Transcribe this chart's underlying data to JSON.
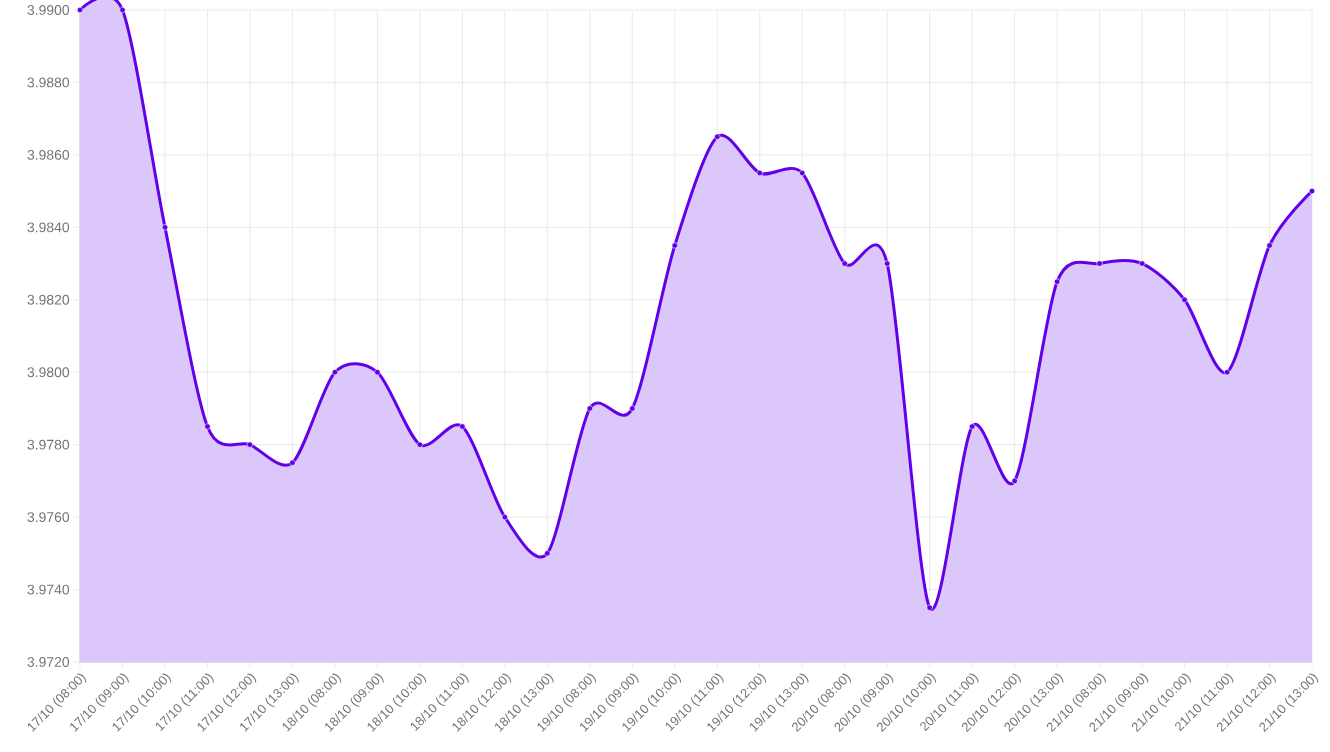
{
  "chart_data": {
    "type": "area",
    "categories": [
      "17/10 (08:00)",
      "17/10 (09:00)",
      "17/10 (10:00)",
      "17/10 (11:00)",
      "17/10 (12:00)",
      "17/10 (13:00)",
      "18/10 (08:00)",
      "18/10 (09:00)",
      "18/10 (10:00)",
      "18/10 (11:00)",
      "18/10 (12:00)",
      "18/10 (13:00)",
      "19/10 (08:00)",
      "19/10 (09:00)",
      "19/10 (10:00)",
      "19/10 (11:00)",
      "19/10 (12:00)",
      "19/10 (13:00)",
      "20/10 (08:00)",
      "20/10 (09:00)",
      "20/10 (10:00)",
      "20/10 (11:00)",
      "20/10 (12:00)",
      "20/10 (13:00)",
      "21/10 (08:00)",
      "21/10 (09:00)",
      "21/10 (10:00)",
      "21/10 (11:00)",
      "21/10 (12:00)",
      "21/10 (13:00)"
    ],
    "series": [
      {
        "color": "#6200ea",
        "values": [
          3.99,
          3.99,
          3.984,
          3.9785,
          3.978,
          3.9775,
          3.98,
          3.98,
          3.978,
          3.9785,
          3.976,
          3.975,
          3.979,
          3.979,
          3.9835,
          3.9865,
          3.9855,
          3.9855,
          3.983,
          3.983,
          3.9735,
          3.9785,
          3.977,
          3.9825,
          3.983,
          3.983,
          3.982,
          3.98,
          3.9835,
          3.985
        ]
      }
    ],
    "ylim": [
      3.972,
      3.99
    ],
    "yticks": [
      {
        "value": 3.972,
        "label": "3.9720"
      },
      {
        "value": 3.974,
        "label": "3.9740"
      },
      {
        "value": 3.976,
        "label": "3.9760"
      },
      {
        "value": 3.978,
        "label": "3.9780"
      },
      {
        "value": 3.98,
        "label": "3.9800"
      },
      {
        "value": 3.982,
        "label": "3.9820"
      },
      {
        "value": 3.984,
        "label": "3.9840"
      },
      {
        "value": 3.986,
        "label": "3.9860"
      },
      {
        "value": 3.988,
        "label": "3.9880"
      },
      {
        "value": 3.99,
        "label": "3.9900"
      }
    ],
    "grid": true,
    "marker": "circle",
    "line_style": "solid"
  }
}
